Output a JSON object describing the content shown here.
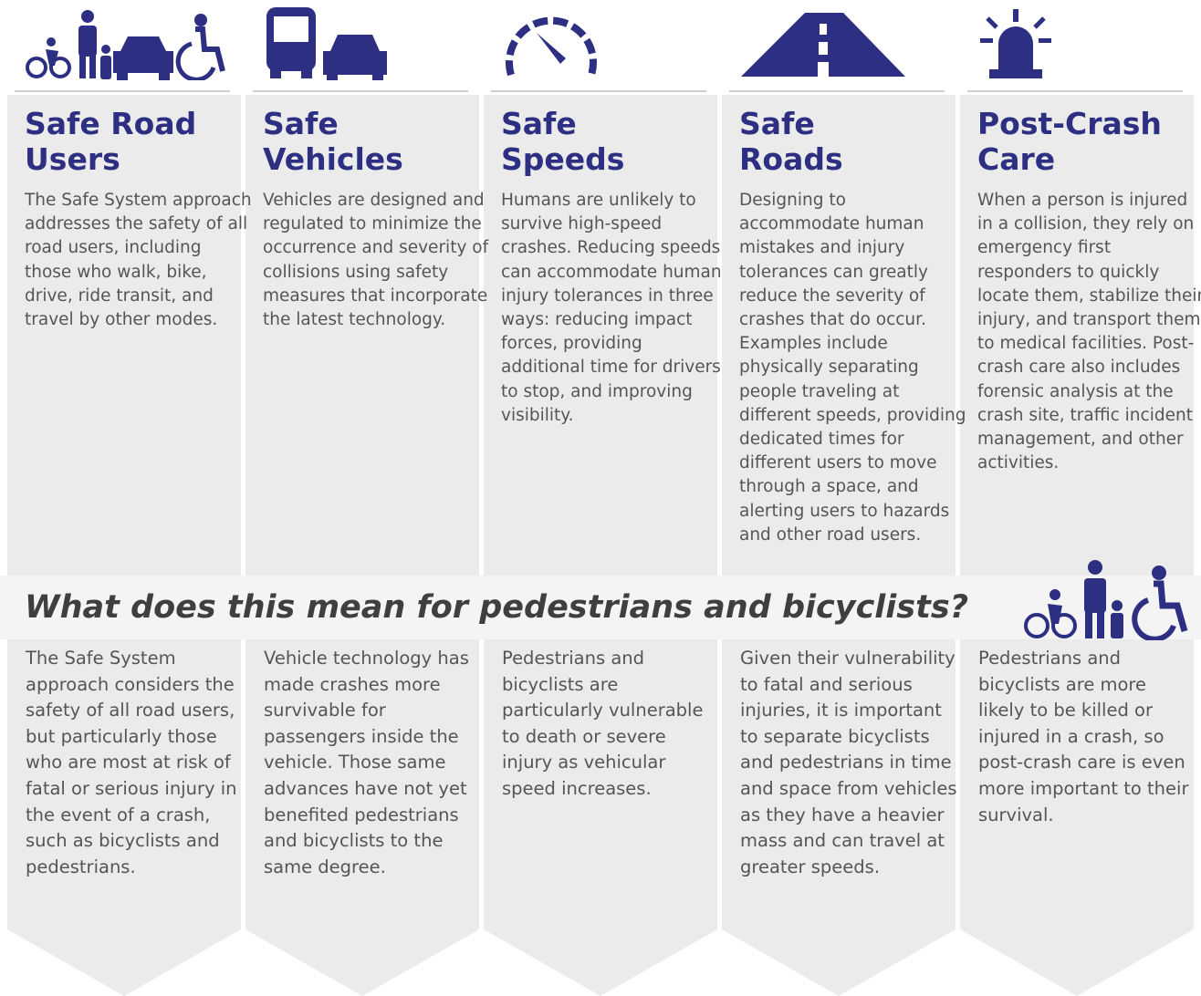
{
  "columns": [
    {
      "heading": [
        "Safe Road",
        "Users"
      ],
      "text": "The Safe System approach addresses the safety of all road users, including those who walk, bike, drive, ride transit, and travel by other modes.",
      "detail": "The Safe System approach considers the safety of all road users, but particularly those who are most at risk of fatal or serious injury in the event of a crash, such as bicyclists and pedestrians."
    },
    {
      "heading": [
        "Safe",
        "Vehicles"
      ],
      "text": "Vehicles are designed and regulated to minimize the occurrence and severity of collisions using safety measures that incorporate the latest technology.",
      "detail": "Vehicle technology has made crashes more survivable for passengers inside the vehicle. Those same advances have not yet benefited pedestrians and bicyclists to the same degree."
    },
    {
      "heading": [
        "Safe",
        "Speeds"
      ],
      "text": "Humans are unlikely to survive high-speed crashes. Reducing speeds can accommodate human injury tolerances in three ways: reducing impact forces, providing additional time for drivers to stop, and improving visibility.",
      "detail": "Pedestrians and bicyclists are particularly vulnerable to death or severe injury as vehicular speed increases."
    },
    {
      "heading": [
        "Safe",
        "Roads"
      ],
      "text": "Designing to accommodate human mistakes and injury tolerances can greatly reduce the severity of crashes that do occur. Examples include physically separating people traveling at different speeds, providing dedicated times for different users to move through a space, and alerting users to hazards and other road users.",
      "detail": "Given their vulnerability to fatal and serious injuries, it is important to separate bicyclists and pedestrians in time and space from vehicles as they have a heavier mass and can travel at greater speeds."
    },
    {
      "heading": [
        "Post-Crash",
        "Care"
      ],
      "text": "When a person is injured in a collision, they rely on emergency first responders to quickly locate them, stabilize their injury, and transport them to medical facilities. Post-crash care also includes forensic analysis at the crash site, traffic incident management, and other activities.",
      "detail": "Pedestrians and bicyclists are more likely to be killed or injured in a crash, so post-crash care is even more important to their survival."
    }
  ],
  "banner": "What does this mean for pedestrians and bicyclists?"
}
